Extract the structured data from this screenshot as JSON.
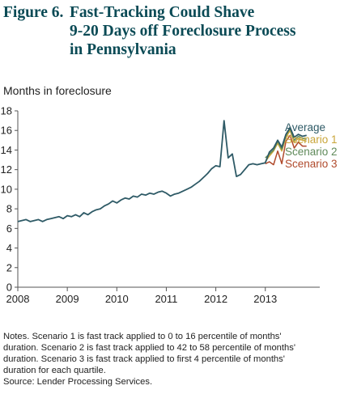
{
  "figure": {
    "number": "Figure 6.",
    "title_line1": "Fast-Tracking Could Shave",
    "title_line2": "9-20 Days off Foreclosure Process",
    "title_line3": "in Pennsylvania"
  },
  "notes": {
    "line1": "Notes. Scenario 1 is fast track applied to 0 to 16 percentile of months'",
    "line2": "duration. Scenario 2 is fast track applied to 42 to 58 percentile of months'",
    "line3": "duration. Scenario 3 is fast track applied to first 4 percentile of months'",
    "line4": "duration for each quartile.",
    "source": "Source: Lender Processing Services."
  },
  "chart_data": {
    "type": "line",
    "ylabel": "Months in foreclosure",
    "xlabel": "",
    "ylim": [
      0,
      18
    ],
    "xlim": [
      2008,
      2014.1
    ],
    "yticks": [
      0,
      2,
      4,
      6,
      8,
      10,
      12,
      14,
      16,
      18
    ],
    "xticks": [
      "2008",
      "2009",
      "2010",
      "2011",
      "2012",
      "2013"
    ],
    "grid": false,
    "legend_position": "right",
    "series": [
      {
        "name": "Average",
        "color": "#2e5a66",
        "x": [
          2008.0,
          2008.0833,
          2008.1667,
          2008.25,
          2008.3333,
          2008.4167,
          2008.5,
          2008.5833,
          2008.6667,
          2008.75,
          2008.8333,
          2008.9167,
          2009.0,
          2009.0833,
          2009.1667,
          2009.25,
          2009.3333,
          2009.4167,
          2009.5,
          2009.5833,
          2009.6667,
          2009.75,
          2009.8333,
          2009.9167,
          2010.0,
          2010.0833,
          2010.1667,
          2010.25,
          2010.3333,
          2010.4167,
          2010.5,
          2010.5833,
          2010.6667,
          2010.75,
          2010.8333,
          2010.9167,
          2011.0,
          2011.0833,
          2011.1667,
          2011.25,
          2011.3333,
          2011.4167,
          2011.5,
          2011.5833,
          2011.6667,
          2011.75,
          2011.8333,
          2011.9167,
          2012.0,
          2012.0833,
          2012.1667,
          2012.25,
          2012.3333,
          2012.4167,
          2012.5,
          2012.5833,
          2012.6667,
          2012.75,
          2012.8333,
          2012.9167,
          2013.0,
          2013.0833,
          2013.1667,
          2013.25,
          2013.3333,
          2013.4167,
          2013.5,
          2013.5833,
          2013.6667,
          2013.75,
          2013.8333
        ],
        "values": [
          6.7,
          6.8,
          6.9,
          6.7,
          6.8,
          6.9,
          6.7,
          6.9,
          7.0,
          7.1,
          7.2,
          7.0,
          7.3,
          7.2,
          7.4,
          7.2,
          7.6,
          7.4,
          7.7,
          7.9,
          8.0,
          8.3,
          8.5,
          8.8,
          8.6,
          8.9,
          9.1,
          9.0,
          9.3,
          9.2,
          9.5,
          9.4,
          9.6,
          9.5,
          9.7,
          9.8,
          9.6,
          9.3,
          9.5,
          9.6,
          9.8,
          10.0,
          10.2,
          10.5,
          10.8,
          11.2,
          11.6,
          12.1,
          12.4,
          12.3,
          17.0,
          13.2,
          13.6,
          11.3,
          11.5,
          12.0,
          12.5,
          12.6,
          12.5,
          12.6,
          12.7,
          13.8,
          14.2,
          15.0,
          14.3,
          15.6,
          16.3,
          15.3,
          15.6,
          15.4,
          15.5
        ]
      },
      {
        "name": "Scenario 1",
        "color": "#c9a63a",
        "x": [
          2013.0,
          2013.0833,
          2013.1667,
          2013.25,
          2013.3333,
          2013.4167,
          2013.5,
          2013.5833,
          2013.6667,
          2013.75,
          2013.8333
        ],
        "values": [
          12.8,
          13.4,
          13.9,
          14.7,
          13.9,
          15.3,
          16.0,
          14.8,
          15.2,
          15.0,
          14.9
        ]
      },
      {
        "name": "Scenario 2",
        "color": "#5f8a5a",
        "x": [
          2013.0,
          2013.0833,
          2013.1667,
          2013.25,
          2013.3333,
          2013.4167,
          2013.5,
          2013.5833,
          2013.6667,
          2013.75,
          2013.8333
        ],
        "values": [
          13.2,
          13.6,
          14.0,
          14.9,
          14.1,
          15.5,
          16.2,
          15.0,
          15.4,
          15.2,
          15.1
        ]
      },
      {
        "name": "Scenario 3",
        "color": "#b04a2c",
        "x": [
          2013.0,
          2013.0833,
          2013.1667,
          2013.25,
          2013.3333,
          2013.4167,
          2013.5,
          2013.5833,
          2013.6667,
          2013.75,
          2013.8333
        ],
        "values": [
          12.6,
          12.8,
          12.5,
          13.9,
          12.6,
          14.9,
          15.5,
          14.2,
          14.8,
          14.4,
          14.4
        ]
      }
    ]
  }
}
